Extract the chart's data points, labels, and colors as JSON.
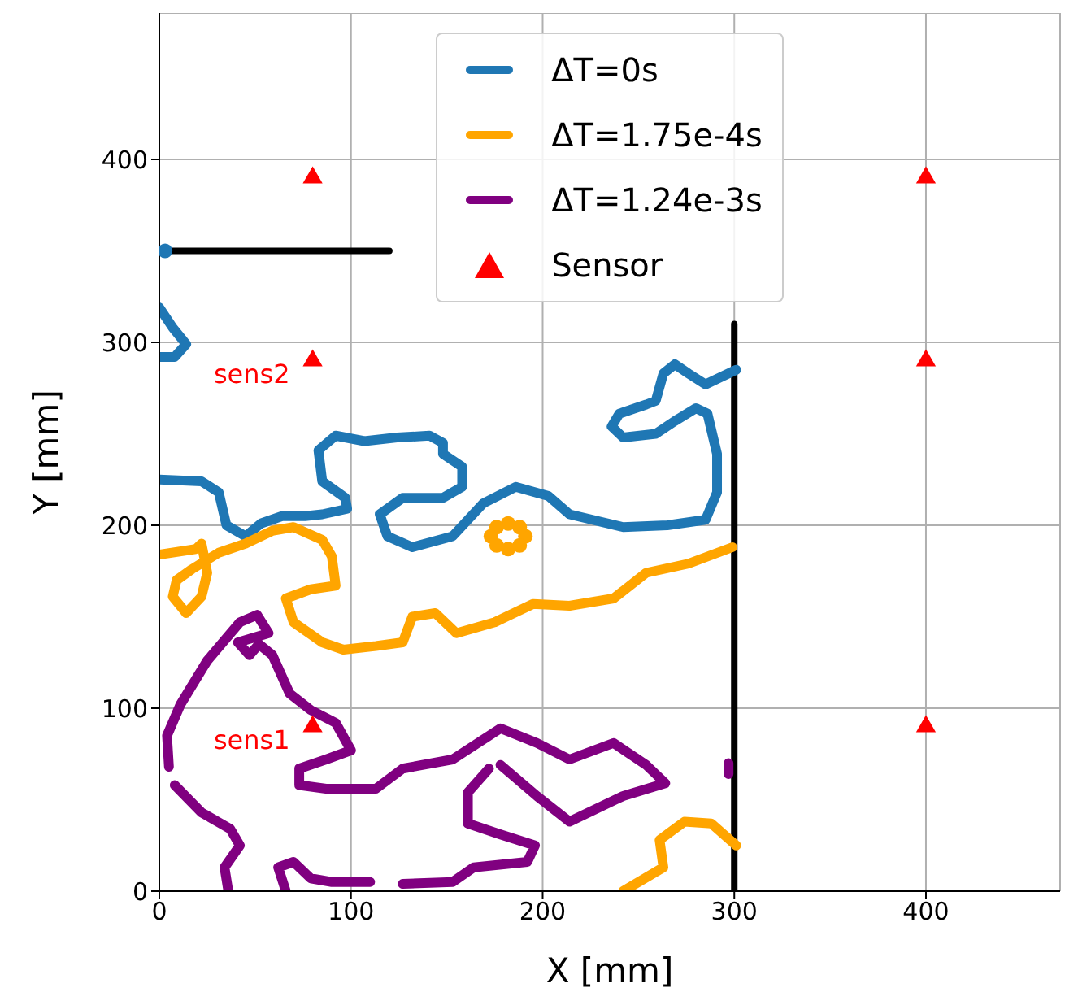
{
  "chart_data": {
    "type": "line",
    "xlabel": "X [mm]",
    "ylabel": "Y [mm]",
    "xlim": [
      0,
      470
    ],
    "ylim": [
      0,
      480
    ],
    "xticks": [
      0,
      100,
      200,
      300,
      400
    ],
    "yticks": [
      0,
      100,
      200,
      300,
      400
    ],
    "grid": true,
    "legend": "top",
    "annotations": [
      {
        "text": "sens2",
        "x": 80,
        "y": 290
      },
      {
        "text": "sens1",
        "x": 80,
        "y": 90
      }
    ],
    "series": [
      {
        "color": "#000000",
        "marker": "none",
        "x": [
          0,
          120,
          null,
          300,
          300
        ],
        "values": [
          350,
          350,
          null,
          310,
          0
        ]
      },
      {
        "type": "scatter",
        "color": "#1f77b4",
        "marker": "circle",
        "x": [
          3
        ],
        "values": [
          350
        ]
      },
      {
        "type": "scatter",
        "color": "#ffa500",
        "marker": "circle",
        "x": [
          191,
          188,
          182,
          176,
          173,
          176,
          182,
          188
        ],
        "values": [
          194,
          199,
          201,
          199,
          194,
          189,
          187,
          189
        ]
      },
      {
        "name": "ΔT=0s",
        "color": "#1f77b4",
        "marker": "none",
        "x": [
          0,
          7,
          14,
          8,
          0,
          null,
          0,
          22,
          31,
          35,
          45,
          53,
          64,
          76,
          85,
          98,
          97,
          85,
          83,
          92,
          107,
          124,
          141,
          148,
          148,
          158,
          158,
          148,
          127,
          115,
          119,
          132,
          153,
          169,
          186,
          203,
          214,
          242,
          265,
          285,
          291,
          291,
          286,
          280,
          269,
          259,
          242,
          236,
          240,
          254,
          259,
          263,
          269,
          276,
          285,
          301
        ],
        "values": [
          319,
          308,
          299,
          292,
          292,
          null,
          225,
          224,
          218,
          200,
          194,
          201,
          205,
          205,
          206,
          209,
          215,
          224,
          241,
          249,
          246,
          248,
          249,
          245,
          239,
          232,
          221,
          215,
          215,
          206,
          194,
          188,
          194,
          212,
          221,
          216,
          206,
          199,
          200,
          203,
          218,
          239,
          261,
          264,
          257,
          250,
          248,
          254,
          261,
          266,
          268,
          283,
          288,
          283,
          277,
          285
        ]
      },
      {
        "name": "ΔT=1.75e-4s",
        "color": "#ffa500",
        "marker": "none",
        "x": [
          0,
          19,
          22,
          25,
          22,
          14,
          7,
          9,
          17,
          31,
          45,
          59,
          70,
          85,
          90,
          92,
          79,
          66,
          70,
          85,
          96,
          113,
          127,
          132,
          144,
          155,
          175,
          195,
          214,
          237,
          254,
          276,
          299,
          null,
          242,
          263,
          261,
          274,
          288,
          301
        ],
        "values": [
          184,
          187,
          190,
          174,
          161,
          152,
          161,
          170,
          176,
          185,
          190,
          197,
          199,
          192,
          183,
          167,
          165,
          160,
          147,
          136,
          132,
          134,
          136,
          150,
          152,
          141,
          147,
          157,
          156,
          160,
          174,
          179,
          188,
          null,
          0,
          13,
          28,
          38,
          37,
          25
        ]
      },
      {
        "name": "ΔT=1.24e-3s",
        "color": "#800080",
        "marker": "none",
        "x": [
          5,
          4,
          11,
          25,
          42,
          51,
          57,
          41,
          47,
          52,
          59,
          68,
          79,
          92,
          100,
          87,
          73,
          73,
          87,
          113,
          127,
          153,
          178,
          197,
          214,
          237,
          254,
          264,
          242,
          214,
          197,
          178,
          null,
          172,
          161,
          161,
          178,
          196,
          192,
          164,
          153,
          127,
          null,
          110,
          90,
          79,
          70,
          62,
          66,
          null,
          8,
          22,
          37,
          42,
          34,
          36,
          null,
          297,
          297
        ],
        "values": [
          68,
          85,
          102,
          126,
          147,
          151,
          141,
          136,
          129,
          135,
          129,
          108,
          99,
          92,
          77,
          72,
          67,
          58,
          56,
          56,
          67,
          72,
          89,
          81,
          72,
          81,
          69,
          59,
          52,
          38,
          52,
          69,
          null,
          67,
          54,
          37,
          31,
          25,
          16,
          13,
          5,
          4,
          null,
          5,
          5,
          7,
          16,
          13,
          0,
          null,
          58,
          43,
          34,
          25,
          13,
          0,
          null,
          64,
          70
        ]
      },
      {
        "name": "Sensor",
        "type": "scatter",
        "color": "#ff0000",
        "marker": "triangle",
        "x": [
          80,
          80,
          80,
          400,
          400,
          400
        ],
        "values": [
          90,
          290,
          390,
          90,
          290,
          390
        ]
      }
    ]
  }
}
